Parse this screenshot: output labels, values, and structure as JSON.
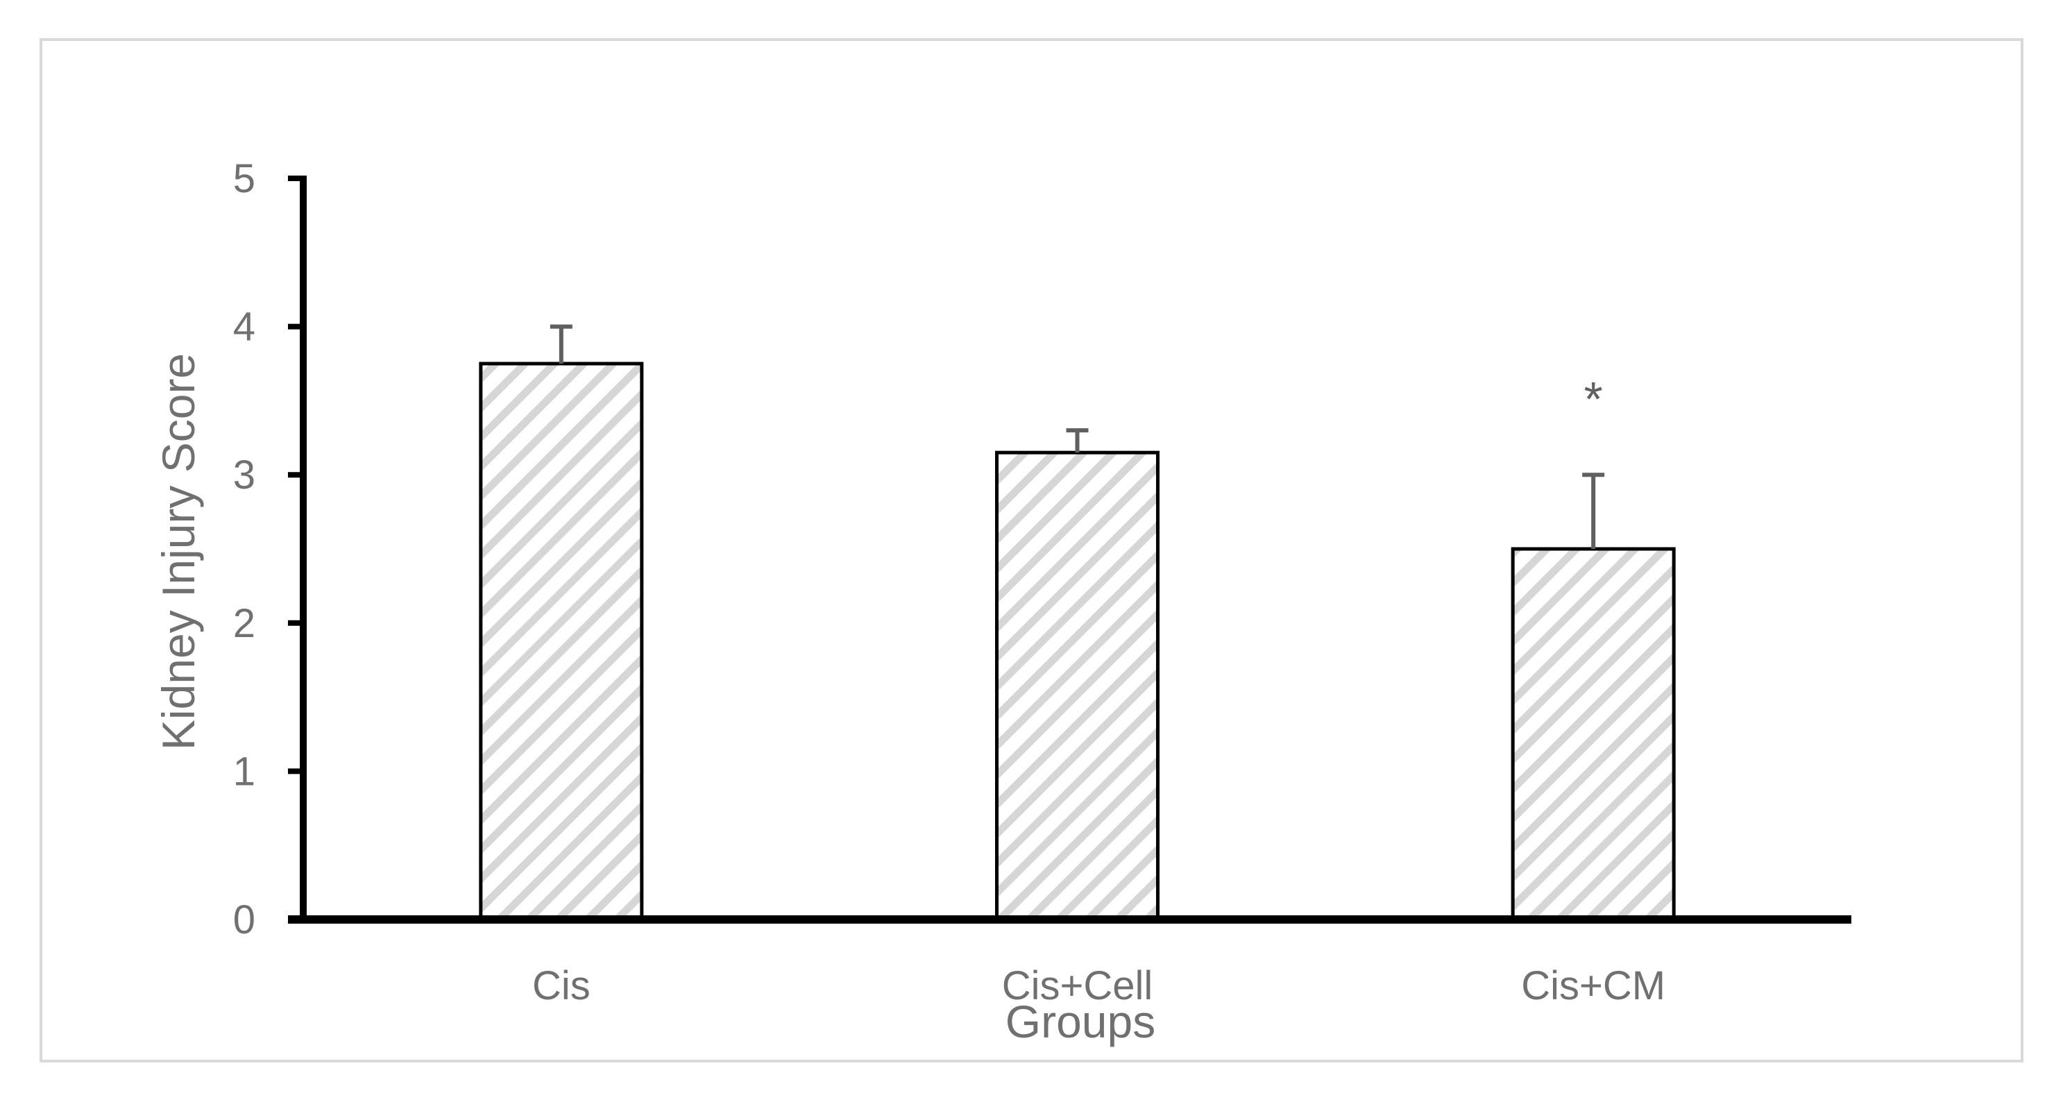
{
  "chart_data": {
    "type": "bar",
    "title": "",
    "xlabel": "Groups",
    "ylabel": "Kidney Injury Score",
    "categories": [
      "Cis",
      "Cis+Cell",
      "Cis+CM"
    ],
    "values": [
      3.75,
      3.15,
      2.5
    ],
    "error_upper": [
      4.0,
      3.3,
      3.0
    ],
    "annotations": [
      "",
      "",
      "*"
    ],
    "ylim": [
      0,
      5
    ],
    "yticks": [
      "0",
      "1",
      "2",
      "3",
      "4",
      "5"
    ],
    "grid": false,
    "legend": "none",
    "bar_pattern": "diagonal hatch",
    "colors": {
      "bar_fill": "#ffffff",
      "hatch": "#d6d6d6",
      "bar_edge": "#000000",
      "axis": "#000000",
      "error_bar": "#606060",
      "frame": "#d9d9d9",
      "text": "#707070"
    }
  }
}
